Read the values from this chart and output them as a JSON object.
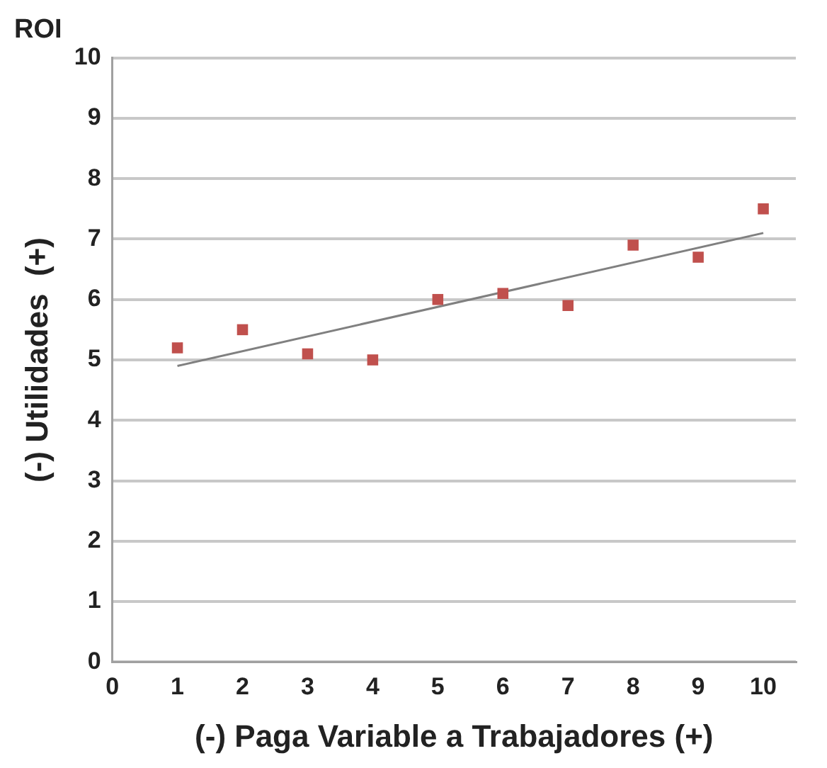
{
  "chart_data": {
    "type": "scatter",
    "title": "ROI",
    "xlabel": "(-) Paga Variable a Trabajadores (+)",
    "ylabel": "(-) Utilidades  (+)",
    "xlim": [
      0,
      10.5
    ],
    "xticks": [
      0,
      1,
      2,
      3,
      4,
      5,
      6,
      7,
      8,
      9,
      10
    ],
    "ylim": [
      0,
      10
    ],
    "yticks": [
      0,
      1,
      2,
      3,
      4,
      5,
      6,
      7,
      8,
      9,
      10
    ],
    "grid": "y",
    "legend": false,
    "marker": "square",
    "series": [
      {
        "color": "#c0504d",
        "x": [
          1,
          2,
          3,
          4,
          5,
          6,
          7,
          8,
          9,
          10
        ],
        "values": [
          5.2,
          5.5,
          5.1,
          5.0,
          6.0,
          6.1,
          5.9,
          6.9,
          6.7,
          7.5
        ]
      },
      {
        "type": "line",
        "color": "#808080",
        "x": [
          1,
          10
        ],
        "values": [
          4.9,
          7.1
        ],
        "marker": "none",
        "line_style": "solid"
      }
    ]
  }
}
